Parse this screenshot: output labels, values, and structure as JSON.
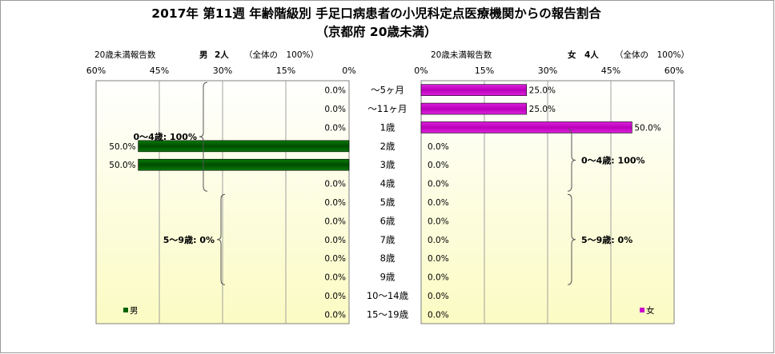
{
  "title_line1": "2017年 第11週 年齢階級別 手足口病患者の小児科定点医療機関からの報告割合",
  "title_line2": "（京都府 20歳未満）",
  "categories": [
    "～5ヶ月",
    "～11ヶ月",
    "1歳",
    "2歳",
    "3歳",
    "4歳",
    "5歳",
    "6歳",
    "7歳",
    "8歳",
    "9歳",
    "10～14歳",
    "15～19歳"
  ],
  "colors": {
    "male": "#006400",
    "female": "#cc00cc"
  },
  "chart_data": [
    {
      "type": "bar",
      "orientation": "horizontal",
      "direction": "right-to-left",
      "header_label": "20歳未満報告数",
      "sex_label": "男",
      "count_label": "2人",
      "total_label": "（全体の　100%）",
      "legend_label": "男",
      "legend_position": "bottom-left",
      "xlim": [
        0,
        60
      ],
      "ticks": [
        "60%",
        "45%",
        "30%",
        "15%",
        "0%"
      ],
      "categories": [
        "～5ヶ月",
        "～11ヶ月",
        "1歳",
        "2歳",
        "3歳",
        "4歳",
        "5歳",
        "6歳",
        "7歳",
        "8歳",
        "9歳",
        "10～14歳",
        "15～19歳"
      ],
      "values": [
        0,
        0,
        0,
        50,
        50,
        0,
        0,
        0,
        0,
        0,
        0,
        0,
        0
      ],
      "value_labels": [
        "0.0%",
        "0.0%",
        "0.0%",
        "50.0%",
        "50.0%",
        "0.0%",
        "0.0%",
        "0.0%",
        "0.0%",
        "0.0%",
        "0.0%",
        "0.0%",
        "0.0%"
      ],
      "groups": [
        {
          "label": "0～4歳: 100%",
          "from": 0,
          "to": 5
        },
        {
          "label": "5～9歳: 0%",
          "from": 6,
          "to": 10
        }
      ]
    },
    {
      "type": "bar",
      "orientation": "horizontal",
      "direction": "left-to-right",
      "header_label": "20歳未満報告数",
      "sex_label": "女",
      "count_label": "4人",
      "total_label": "（全体の　100%）",
      "legend_label": "女",
      "legend_position": "bottom-right",
      "xlim": [
        0,
        60
      ],
      "ticks": [
        "0%",
        "15%",
        "30%",
        "45%",
        "60%"
      ],
      "categories": [
        "～5ヶ月",
        "～11ヶ月",
        "1歳",
        "2歳",
        "3歳",
        "4歳",
        "5歳",
        "6歳",
        "7歳",
        "8歳",
        "9歳",
        "10～14歳",
        "15～19歳"
      ],
      "values": [
        25,
        25,
        50,
        0,
        0,
        0,
        0,
        0,
        0,
        0,
        0,
        0,
        0
      ],
      "value_labels": [
        "25.0%",
        "25.0%",
        "50.0%",
        "0.0%",
        "0.0%",
        "0.0%",
        "0.0%",
        "0.0%",
        "0.0%",
        "0.0%",
        "0.0%",
        "0.0%",
        "0.0%"
      ],
      "groups": [
        {
          "label": "0～4歳: 100%",
          "from": 0,
          "to": 5
        },
        {
          "label": "5～9歳: 0%",
          "from": 6,
          "to": 10
        }
      ]
    }
  ]
}
